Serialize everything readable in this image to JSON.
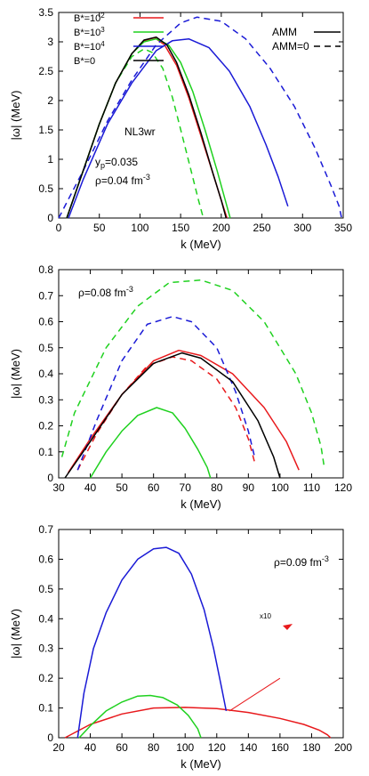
{
  "colors": {
    "red": "#e8191c",
    "green": "#1fd11f",
    "blue": "#1a1ad6",
    "black": "#000000"
  },
  "legend": {
    "b_entries": [
      {
        "label": "B*=10",
        "sup": "2",
        "color": "#e8191c"
      },
      {
        "label": "B*=10",
        "sup": "3",
        "color": "#1fd11f"
      },
      {
        "label": "B*=10",
        "sup": "4",
        "color": "#1a1ad6"
      },
      {
        "label": "B*=0",
        "sup": "",
        "color": "#000000"
      }
    ],
    "styles": [
      {
        "label": "AMM",
        "dash": "solid"
      },
      {
        "label": "AMM=0",
        "dash": "dashed"
      }
    ]
  },
  "chart_data": [
    {
      "type": "line",
      "xlabel": "k (MeV)",
      "ylabel": "|ω| (MeV)",
      "xlim": [
        0,
        350
      ],
      "ylim": [
        0,
        3.5
      ],
      "xticks": [
        "0",
        "50",
        "100",
        "150",
        "200",
        "250",
        "300",
        "350"
      ],
      "yticks": [
        "0",
        "0.5",
        "1",
        "1.5",
        "2",
        "2.5",
        "3",
        "3.5"
      ],
      "annotations": [
        {
          "text": "NL3wr"
        },
        {
          "text": "y",
          "sub": "p",
          "rest": "=0.035"
        },
        {
          "text": "ρ=0.04 fm",
          "sup": "-3"
        }
      ],
      "series": [
        {
          "color": "red",
          "dash": "solid",
          "x": [
            10,
            30,
            50,
            70,
            90,
            105,
            118,
            130,
            145,
            160,
            175,
            190,
            200,
            207
          ],
          "y": [
            0,
            0.8,
            1.6,
            2.3,
            2.8,
            3.02,
            3.07,
            2.95,
            2.6,
            2.05,
            1.4,
            0.75,
            0.3,
            0
          ]
        },
        {
          "color": "green",
          "dash": "solid",
          "x": [
            10,
            30,
            50,
            70,
            90,
            105,
            120,
            135,
            150,
            165,
            180,
            195,
            205,
            211
          ],
          "y": [
            0,
            0.8,
            1.6,
            2.3,
            2.8,
            3.0,
            3.05,
            2.95,
            2.65,
            2.15,
            1.5,
            0.8,
            0.3,
            0
          ]
        },
        {
          "color": "green",
          "dash": "dashed",
          "x": [
            10,
            30,
            50,
            70,
            90,
            105,
            115,
            128,
            140,
            152,
            163,
            172,
            178
          ],
          "y": [
            0,
            0.8,
            1.6,
            2.3,
            2.75,
            2.88,
            2.82,
            2.55,
            2.05,
            1.4,
            0.8,
            0.3,
            0
          ]
        },
        {
          "color": "blue",
          "dash": "solid",
          "x": [
            12,
            30,
            60,
            90,
            120,
            140,
            160,
            185,
            210,
            235,
            255,
            270,
            282
          ],
          "y": [
            0,
            0.65,
            1.6,
            2.3,
            2.85,
            3.02,
            3.05,
            2.9,
            2.5,
            1.9,
            1.25,
            0.7,
            0.2
          ]
        },
        {
          "color": "blue",
          "dash": "dashed",
          "x": [
            0,
            30,
            60,
            90,
            120,
            150,
            170,
            200,
            230,
            260,
            290,
            315,
            335,
            345,
            348
          ],
          "y": [
            0,
            0.8,
            1.65,
            2.35,
            2.95,
            3.32,
            3.42,
            3.35,
            3.05,
            2.55,
            1.9,
            1.2,
            0.55,
            0.2,
            0
          ]
        },
        {
          "color": "black",
          "dash": "solid",
          "x": [
            10,
            30,
            50,
            70,
            90,
            105,
            120,
            133,
            145,
            160,
            175,
            190,
            200,
            206
          ],
          "y": [
            0,
            0.8,
            1.6,
            2.3,
            2.8,
            3.03,
            3.08,
            2.95,
            2.65,
            2.1,
            1.45,
            0.75,
            0.3,
            0
          ]
        }
      ]
    },
    {
      "type": "line",
      "xlabel": "k (MeV)",
      "ylabel": "|ω| (MeV)",
      "xlim": [
        30,
        120
      ],
      "ylim": [
        0,
        0.8
      ],
      "xticks": [
        "30",
        "40",
        "50",
        "60",
        "70",
        "80",
        "90",
        "100",
        "110",
        "120"
      ],
      "yticks": [
        "0",
        "0.1",
        "0.2",
        "0.3",
        "0.4",
        "0.5",
        "0.6",
        "0.7",
        "0.8"
      ],
      "annotations": [
        {
          "text": "ρ=0.08 fm",
          "sup": "-3"
        }
      ],
      "series": [
        {
          "color": "red",
          "dash": "solid",
          "x": [
            33,
            40,
            50,
            60,
            68,
            75,
            85,
            95,
            102,
            106
          ],
          "y": [
            0.02,
            0.15,
            0.32,
            0.45,
            0.49,
            0.47,
            0.4,
            0.27,
            0.14,
            0.03
          ]
        },
        {
          "color": "red",
          "dash": "dashed",
          "x": [
            36,
            42,
            50,
            58,
            66,
            72,
            80,
            86,
            90,
            92
          ],
          "y": [
            0.03,
            0.17,
            0.32,
            0.43,
            0.465,
            0.45,
            0.38,
            0.27,
            0.15,
            0.06
          ]
        },
        {
          "color": "green",
          "dash": "solid",
          "x": [
            40,
            45,
            50,
            55,
            61,
            66,
            70,
            74,
            77,
            78
          ],
          "y": [
            0,
            0.1,
            0.18,
            0.24,
            0.27,
            0.25,
            0.19,
            0.11,
            0.04,
            0
          ]
        },
        {
          "color": "green",
          "dash": "dashed",
          "x": [
            31,
            35,
            45,
            55,
            65,
            75,
            85,
            95,
            105,
            110,
            113,
            114
          ],
          "y": [
            0.08,
            0.25,
            0.5,
            0.66,
            0.75,
            0.76,
            0.72,
            0.6,
            0.4,
            0.25,
            0.12,
            0.04
          ]
        },
        {
          "color": "blue",
          "dash": "dashed",
          "x": [
            36,
            42,
            50,
            58,
            66,
            72,
            80,
            86,
            90,
            92
          ],
          "y": [
            0.03,
            0.22,
            0.45,
            0.59,
            0.62,
            0.6,
            0.5,
            0.33,
            0.18,
            0.08
          ]
        },
        {
          "color": "black",
          "dash": "solid",
          "x": [
            32,
            40,
            50,
            60,
            69,
            75,
            85,
            93,
            98,
            100
          ],
          "y": [
            0,
            0.14,
            0.32,
            0.44,
            0.48,
            0.46,
            0.37,
            0.22,
            0.08,
            0
          ]
        }
      ]
    },
    {
      "type": "line",
      "xlabel": "k (MeV)",
      "ylabel": "|ω| (MeV)",
      "xlim": [
        20,
        200
      ],
      "ylim": [
        0,
        0.7
      ],
      "xticks": [
        "20",
        "40",
        "60",
        "80",
        "100",
        "120",
        "140",
        "160",
        "180",
        "200"
      ],
      "yticks": [
        "0",
        "0.1",
        "0.2",
        "0.3",
        "0.4",
        "0.5",
        "0.6",
        "0.7"
      ],
      "annotations": [
        {
          "text": "ρ=0.09 fm",
          "sup": "-3"
        },
        {
          "text": "x10"
        }
      ],
      "series": [
        {
          "color": "red",
          "dash": "solid",
          "x": [
            24,
            40,
            60,
            80,
            100,
            120,
            140,
            160,
            175,
            185,
            190,
            192
          ],
          "y": [
            0,
            0.045,
            0.08,
            0.1,
            0.102,
            0.098,
            0.085,
            0.065,
            0.045,
            0.025,
            0.01,
            0
          ]
        },
        {
          "color": "green",
          "dash": "solid",
          "x": [
            33,
            40,
            50,
            60,
            70,
            78,
            86,
            95,
            102,
            108,
            110
          ],
          "y": [
            0,
            0.04,
            0.09,
            0.12,
            0.14,
            0.142,
            0.135,
            0.11,
            0.075,
            0.03,
            0
          ]
        },
        {
          "color": "blue",
          "dash": "solid",
          "x": [
            32,
            36,
            42,
            50,
            60,
            70,
            80,
            88,
            96,
            104,
            112,
            118,
            123,
            126
          ],
          "y": [
            0,
            0.15,
            0.3,
            0.42,
            0.53,
            0.6,
            0.635,
            0.64,
            0.62,
            0.55,
            0.43,
            0.3,
            0.17,
            0.09
          ]
        }
      ]
    }
  ]
}
